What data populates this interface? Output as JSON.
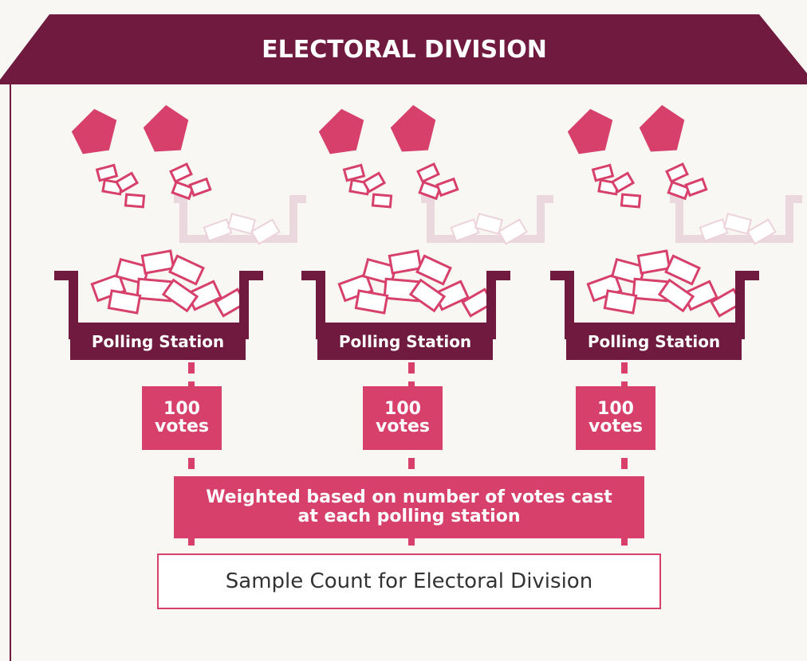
{
  "header": {
    "title": "ELECTORAL DIVISION"
  },
  "stations": [
    {
      "label": "Polling Station",
      "count": "100",
      "unit": "votes"
    },
    {
      "label": "Polling Station",
      "count": "100",
      "unit": "votes"
    },
    {
      "label": "Polling Station",
      "count": "100",
      "unit": "votes"
    }
  ],
  "weighting": "Weighted based on number of votes cast at each polling station",
  "result": "Sample Count for Electoral Division"
}
